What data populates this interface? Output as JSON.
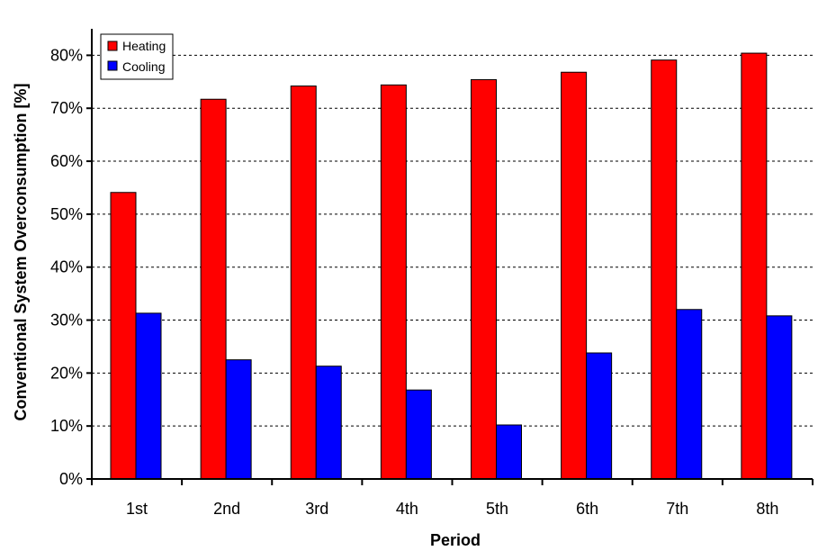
{
  "chart_data": {
    "type": "bar",
    "title": "",
    "xlabel": "Period",
    "ylabel": "Conventional System Overconsumption [%]",
    "categories": [
      "1st",
      "2nd",
      "3rd",
      "4th",
      "5th",
      "6th",
      "7th",
      "8th"
    ],
    "series": [
      {
        "name": "Heating",
        "color": "#ff0000",
        "values": [
          54.1,
          71.7,
          74.2,
          74.4,
          75.4,
          76.8,
          79.1,
          80.4
        ]
      },
      {
        "name": "Cooling",
        "color": "#0000ff",
        "values": [
          31.3,
          22.5,
          21.3,
          16.8,
          10.2,
          23.8,
          32.0,
          30.8
        ]
      }
    ],
    "ylim": [
      0,
      85
    ],
    "yticks": [
      0,
      10,
      20,
      30,
      40,
      50,
      60,
      70,
      80
    ],
    "ytick_format": "percent",
    "grid": true,
    "grid_style": "dashed-horizontal",
    "legend": {
      "position": "top-left",
      "entries": [
        "Heating",
        "Cooling"
      ]
    }
  }
}
